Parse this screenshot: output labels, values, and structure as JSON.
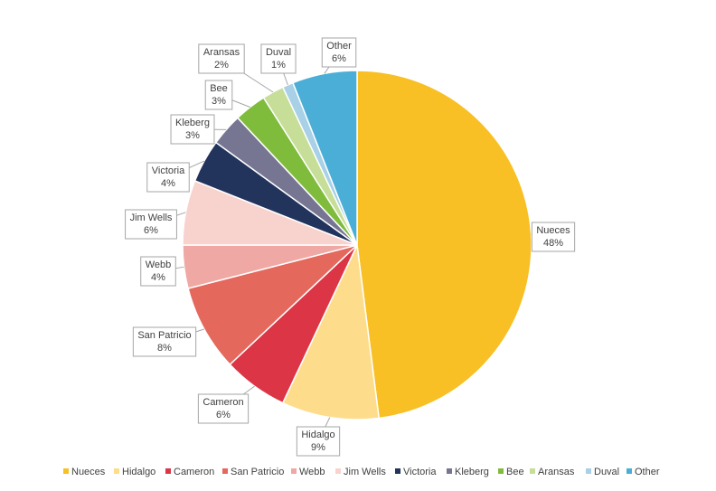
{
  "chart_data": {
    "type": "pie",
    "categories": [
      "Nueces",
      "Hidalgo",
      "Cameron",
      "San Patricio",
      "Webb",
      "Jim Wells",
      "Victoria",
      "Kleberg",
      "Bee",
      "Aransas",
      "Duval",
      "Other"
    ],
    "values": [
      48,
      9,
      6,
      8,
      4,
      6,
      4,
      3,
      3,
      2,
      1,
      6
    ],
    "value_labels": [
      "48%",
      "9%",
      "6%",
      "8%",
      "4%",
      "6%",
      "4%",
      "3%",
      "3%",
      "2%",
      "1%",
      "6%"
    ],
    "colors": [
      "#F8C025",
      "#FDDD8C",
      "#DC3545",
      "#E4685C",
      "#F0A8A4",
      "#F8D3CE",
      "#22345C",
      "#767693",
      "#80BC3C",
      "#C6DE98",
      "#A8D0E6",
      "#4AAED6"
    ],
    "legend": "bottom"
  }
}
